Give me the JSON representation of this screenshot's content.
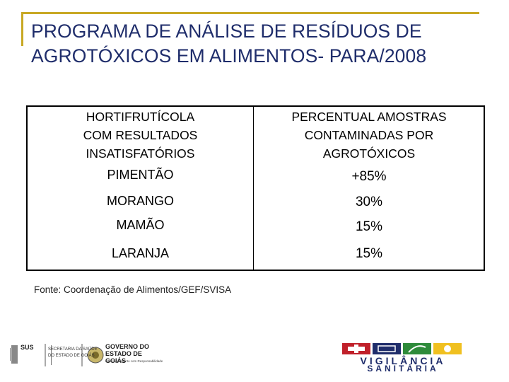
{
  "title_line1": "PROGRAMA DE ANÁLISE DE RESÍDUOS DE",
  "title_line2": "AGROTÓXICOS EM ALIMENTOS- PARA/2008",
  "table": {
    "header_left": [
      "HORTIFRUTÍCOLA",
      "COM RESULTADOS",
      "INSATISFATÓRIOS"
    ],
    "header_right": [
      "PERCENTUAL AMOSTRAS",
      "CONTAMINADAS POR",
      "AGROTÓXICOS"
    ],
    "rows": [
      {
        "item": "PIMENTÃO",
        "value": "+85%"
      },
      {
        "item": "MORANGO",
        "value": "30%"
      },
      {
        "item": "MAMÃO",
        "value": "15%"
      },
      {
        "item": "LARANJA",
        "value": "15%"
      }
    ]
  },
  "source": "Fonte: Coordenação de Alimentos/GEF/SVISA",
  "logo_left": {
    "sus": "SUS",
    "secretaria": [
      "SECRETARIA DA SAÚDE",
      "DO ESTADO DE GOIÁS"
    ],
    "governo": [
      "GOVERNO DO",
      "ESTADO DE GOIÁS"
    ],
    "slogan": "Desenvolvimento com Responsabilidade"
  },
  "logo_right": {
    "line1": "VIGILÂNCIA",
    "line2": "SANITÁRIA"
  },
  "colors": {
    "title": "#1f2d6b",
    "frame": "#c8a824",
    "vs_red": "#c0202a",
    "vs_blue": "#1f2d6b",
    "vs_green": "#2e8b3a",
    "vs_yellow": "#f0c020"
  }
}
